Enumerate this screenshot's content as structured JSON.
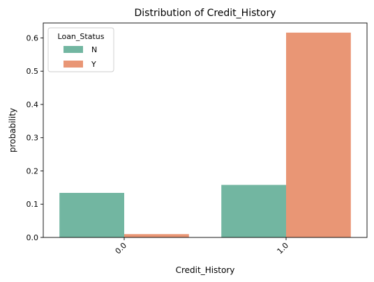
{
  "chart_data": {
    "type": "bar",
    "title": "Distribution of Credit_History",
    "xlabel": "Credit_History",
    "ylabel": "probability",
    "categories": [
      "0.0",
      "1.0"
    ],
    "series": [
      {
        "name": "N",
        "values": [
          0.134,
          0.158
        ],
        "color": "#72b6a1"
      },
      {
        "name": "Y",
        "values": [
          0.01,
          0.616
        ],
        "color": "#e99675"
      }
    ],
    "ylim": [
      0,
      0.645
    ],
    "yticks": [
      0.0,
      0.1,
      0.2,
      0.3,
      0.4,
      0.5,
      0.6
    ],
    "ytick_labels": [
      "0.0",
      "0.1",
      "0.2",
      "0.3",
      "0.4",
      "0.5",
      "0.6"
    ],
    "legend": {
      "title": "Loan_Status",
      "placement": "top-left"
    },
    "grid": false
  }
}
